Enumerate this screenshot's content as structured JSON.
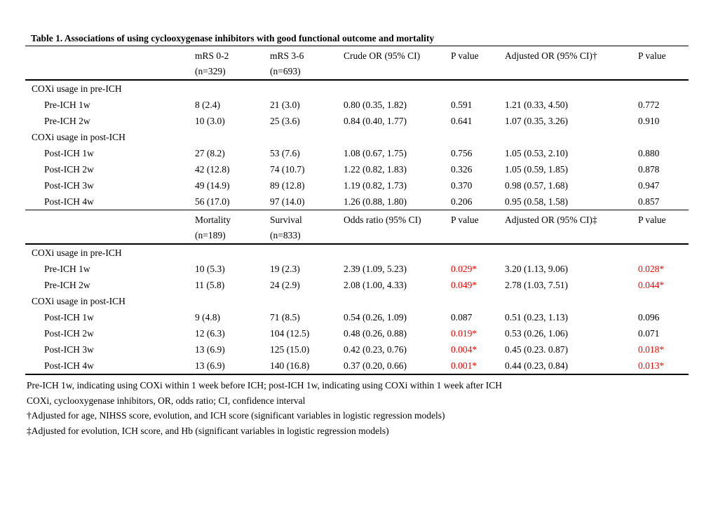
{
  "title": "Table 1. Associations of using cyclooxygenase inhibitors with good functional outcome and mortality",
  "colors": {
    "significant_text": "#FF0000",
    "text": "#000000",
    "rule": "#000000",
    "background": "#FFFFFF"
  },
  "panels": [
    {
      "name": "functional-outcome",
      "columns": [
        {
          "line1": "",
          "line2": ""
        },
        {
          "line1": "mRS 0-2",
          "line2": "(n=329)"
        },
        {
          "line1": "mRS 3-6",
          "line2": "(n=693)"
        },
        {
          "line1": "Crude OR (95% CI)",
          "line2": ""
        },
        {
          "line1": "P value",
          "line2": ""
        },
        {
          "line1": "Adjusted OR (95% CI)†",
          "line2": ""
        },
        {
          "line1": "P value",
          "line2": ""
        }
      ],
      "sections": [
        {
          "label": "COXi usage in pre-ICH",
          "rows": [
            {
              "label": "Pre-ICH 1w",
              "cells": [
                {
                  "text": "8 (2.4)"
                },
                {
                  "text": "21 (3.0)"
                },
                {
                  "text": "0.80 (0.35, 1.82)"
                },
                {
                  "text": "0.591"
                },
                {
                  "text": "1.21 (0.33, 4.50)"
                },
                {
                  "text": "0.772"
                }
              ]
            },
            {
              "label": "Pre-ICH 2w",
              "cells": [
                {
                  "text": "10 (3.0)"
                },
                {
                  "text": "25 (3.6)"
                },
                {
                  "text": "0.84 (0.40, 1.77)"
                },
                {
                  "text": "0.641"
                },
                {
                  "text": "1.07 (0.35, 3.26)"
                },
                {
                  "text": "0.910"
                }
              ]
            }
          ]
        },
        {
          "label": "COXi usage in post-ICH",
          "rows": [
            {
              "label": "Post-ICH 1w",
              "cells": [
                {
                  "text": "27 (8.2)"
                },
                {
                  "text": "53 (7.6)"
                },
                {
                  "text": "1.08 (0.67, 1.75)"
                },
                {
                  "text": "0.756"
                },
                {
                  "text": "1.05 (0.53, 2.10)"
                },
                {
                  "text": "0.880"
                }
              ]
            },
            {
              "label": "Post-ICH 2w",
              "cells": [
                {
                  "text": "42 (12.8)"
                },
                {
                  "text": "74 (10.7)"
                },
                {
                  "text": "1.22 (0.82, 1.83)"
                },
                {
                  "text": "0.326"
                },
                {
                  "text": "1.05 (0.59, 1.85)"
                },
                {
                  "text": "0.878"
                }
              ]
            },
            {
              "label": "Post-ICH 3w",
              "cells": [
                {
                  "text": "49 (14.9)"
                },
                {
                  "text": "89 (12.8)"
                },
                {
                  "text": "1.19 (0.82, 1.73)"
                },
                {
                  "text": "0.370"
                },
                {
                  "text": "0.98 (0.57, 1.68)"
                },
                {
                  "text": "0.947"
                }
              ]
            },
            {
              "label": "Post-ICH 4w",
              "cells": [
                {
                  "text": "56 (17.0)"
                },
                {
                  "text": "97 (14.0)"
                },
                {
                  "text": "1.26 (0.88, 1.80)"
                },
                {
                  "text": "0.206"
                },
                {
                  "text": "0.95 (0.58, 1.58)"
                },
                {
                  "text": "0.857"
                }
              ]
            }
          ]
        }
      ]
    },
    {
      "name": "mortality",
      "columns": [
        {
          "line1": "",
          "line2": ""
        },
        {
          "line1": "Mortality",
          "line2": "(n=189)"
        },
        {
          "line1": "Survival",
          "line2": "(n=833)"
        },
        {
          "line1": "Odds ratio (95% CI)",
          "line2": ""
        },
        {
          "line1": "P value",
          "line2": ""
        },
        {
          "line1": "Adjusted OR (95% CI)‡",
          "line2": ""
        },
        {
          "line1": "P value",
          "line2": ""
        }
      ],
      "sections": [
        {
          "label": "COXi usage in pre-ICH",
          "rows": [
            {
              "label": "Pre-ICH 1w",
              "cells": [
                {
                  "text": "10 (5.3)"
                },
                {
                  "text": "19 (2.3)"
                },
                {
                  "text": "2.39 (1.09, 5.23)"
                },
                {
                  "text": "0.029*",
                  "significant": true
                },
                {
                  "text": "3.20 (1.13, 9.06)"
                },
                {
                  "text": "0.028*",
                  "significant": true
                }
              ]
            },
            {
              "label": "Pre-ICH 2w",
              "cells": [
                {
                  "text": "11 (5.8)"
                },
                {
                  "text": "24 (2.9)"
                },
                {
                  "text": "2.08 (1.00, 4.33)"
                },
                {
                  "text": "0.049*",
                  "significant": true
                },
                {
                  "text": "2.78 (1.03, 7.51)"
                },
                {
                  "text": "0.044*",
                  "significant": true
                }
              ]
            }
          ]
        },
        {
          "label": "COXi usage in post-ICH",
          "rows": [
            {
              "label": "Post-ICH 1w",
              "cells": [
                {
                  "text": "9 (4.8)"
                },
                {
                  "text": "71 (8.5)"
                },
                {
                  "text": "0.54 (0.26, 1.09)"
                },
                {
                  "text": "0.087"
                },
                {
                  "text": "0.51 (0.23, 1.13)"
                },
                {
                  "text": "0.096"
                }
              ]
            },
            {
              "label": "Post-ICH 2w",
              "cells": [
                {
                  "text": "12 (6.3)"
                },
                {
                  "text": "104 (12.5)"
                },
                {
                  "text": "0.48 (0.26, 0.88)"
                },
                {
                  "text": "0.019*",
                  "significant": true
                },
                {
                  "text": "0.53 (0.26, 1.06)"
                },
                {
                  "text": "0.071"
                }
              ]
            },
            {
              "label": "Post-ICH 3w",
              "cells": [
                {
                  "text": "13 (6.9)"
                },
                {
                  "text": "125 (15.0)"
                },
                {
                  "text": "0.42 (0.23, 0.76)"
                },
                {
                  "text": "0.004*",
                  "significant": true
                },
                {
                  "text": "0.45 (0.23. 0.87)"
                },
                {
                  "text": "0.018*",
                  "significant": true
                }
              ]
            },
            {
              "label": "Post-ICH 4w",
              "cells": [
                {
                  "text": "13 (6.9)"
                },
                {
                  "text": "140 (16.8)"
                },
                {
                  "text": "0.37 (0.20, 0.66)"
                },
                {
                  "text": "0.001*",
                  "significant": true
                },
                {
                  "text": "0.44 (0.23, 0.84)"
                },
                {
                  "text": "0.013*",
                  "significant": true
                }
              ]
            }
          ]
        }
      ]
    }
  ],
  "footnotes": [
    "Pre-ICH 1w, indicating using COXi within 1 week before ICH; post-ICH 1w, indicating using COXi within 1 week after ICH",
    "COXi, cyclooxygenase inhibitors, OR, odds ratio; CI, confidence interval",
    "†Adjusted for age, NIHSS score, evolution, and ICH score (significant variables in logistic regression models)",
    "‡Adjusted for evolution, ICH score, and Hb (significant variables in logistic regression models)"
  ]
}
